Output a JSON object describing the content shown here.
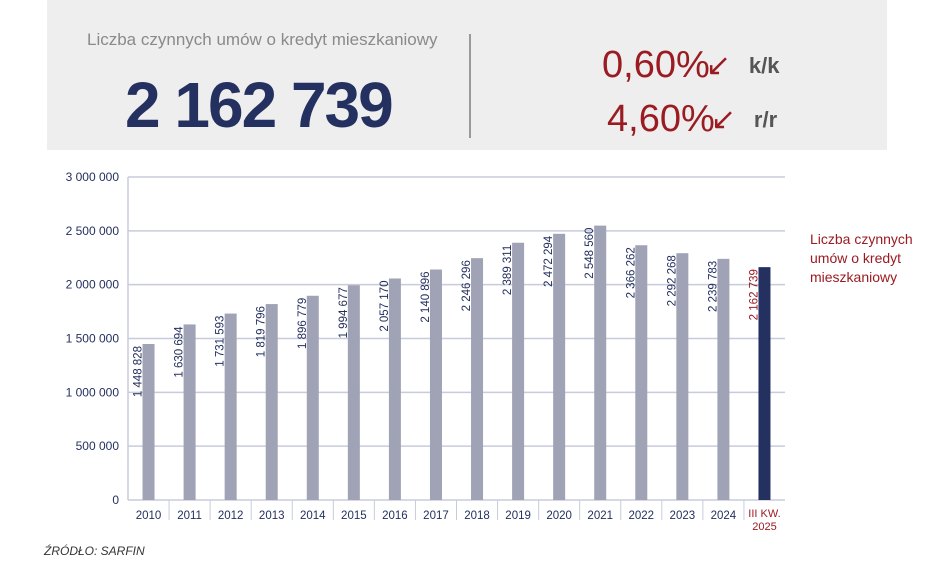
{
  "header": {
    "title": "Liczba czynnych umów o kredyt mieszkaniowy",
    "value": "2 162 739",
    "changes": [
      {
        "value": "0,60%",
        "period": "k/k",
        "direction": "down"
      },
      {
        "value": "4,60%",
        "period": "r/r",
        "direction": "down"
      }
    ]
  },
  "chart_data": {
    "type": "bar",
    "ylim": [
      0,
      3000000
    ],
    "grid": true,
    "yticks": [
      "0",
      "500 000",
      "1 000 000",
      "1 500 000",
      "2 000 000",
      "2 500 000",
      "3 000 000"
    ],
    "categories": [
      "2010",
      "2011",
      "2012",
      "2013",
      "2014",
      "2015",
      "2016",
      "2017",
      "2018",
      "2019",
      "2020",
      "2021",
      "2022",
      "2023",
      "2024",
      "III KW. 2025"
    ],
    "values": [
      1448828,
      1630694,
      1731593,
      1819796,
      1896779,
      1994677,
      2057170,
      2140896,
      2246296,
      2389311,
      2472294,
      2548560,
      2366262,
      2292268,
      2239783,
      2162739
    ],
    "labels": [
      "1 448 828",
      "1 630 694",
      "1 731 593",
      "1 819 796",
      "1 896 779",
      "1 994 677",
      "2 057 170",
      "2 140 896",
      "2 246 296",
      "2 389 311",
      "2 472 294",
      "2 548 560",
      "2 366 262",
      "2 292 268",
      "2 239 783",
      "2 162 739"
    ],
    "colors": {
      "bar": "#a0a3b5",
      "highlight": "#24305f",
      "highlight_label": "#9b1b22",
      "label": "#24305f"
    },
    "legend": "Liczba czynnych umów o kredyt mieszkaniowy"
  },
  "source": "ŹRÓDŁO: SARFIN"
}
